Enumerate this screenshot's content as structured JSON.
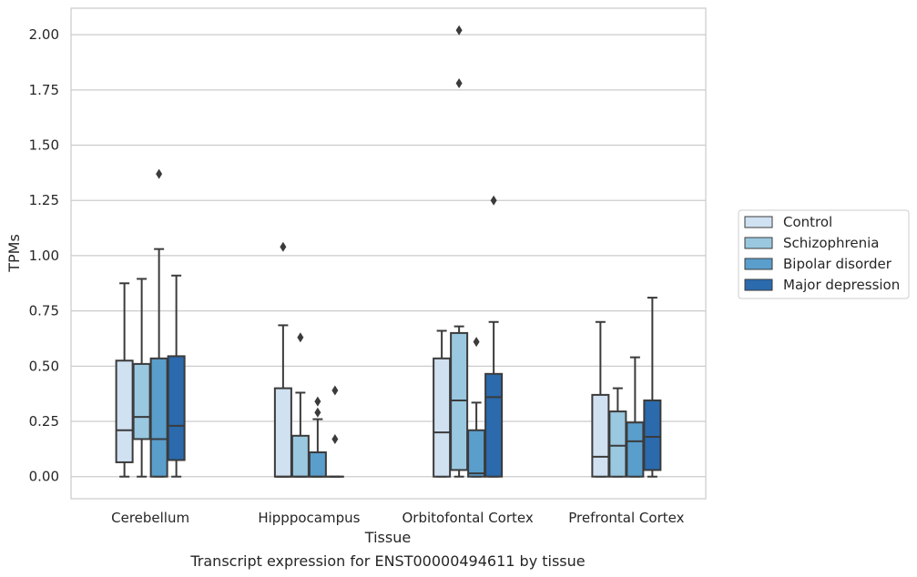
{
  "chart_data": {
    "type": "box",
    "caption": "Transcript expression for ENST00000494611 by tissue",
    "xlabel": "Tissue",
    "ylabel": "TPMs",
    "ylim": [
      -0.1,
      2.12
    ],
    "yticks": [
      "0.00",
      "0.25",
      "0.50",
      "0.75",
      "1.00",
      "1.25",
      "1.50",
      "1.75",
      "2.00"
    ],
    "ytick_values": [
      0,
      0.25,
      0.5,
      0.75,
      1.0,
      1.25,
      1.5,
      1.75,
      2.0
    ],
    "grid": "horizontal",
    "legend_position": "right",
    "categories": [
      "Cerebellum",
      "Hipppocampus",
      "Orbitofontal Cortex",
      "Prefrontal Cortex"
    ],
    "series": [
      {
        "name": "Control",
        "color": "#d0e1f2",
        "boxes": [
          {
            "whisker_low": 0.0,
            "q1": 0.065,
            "median": 0.21,
            "q3": 0.525,
            "whisker_high": 0.875,
            "outliers": []
          },
          {
            "whisker_low": 0.0,
            "q1": 0.0,
            "median": 0.0,
            "q3": 0.4,
            "whisker_high": 0.685,
            "outliers": [
              1.04
            ]
          },
          {
            "whisker_low": 0.0,
            "q1": 0.0,
            "median": 0.2,
            "q3": 0.535,
            "whisker_high": 0.66,
            "outliers": []
          },
          {
            "whisker_low": 0.0,
            "q1": 0.0,
            "median": 0.09,
            "q3": 0.37,
            "whisker_high": 0.7,
            "outliers": []
          }
        ]
      },
      {
        "name": "Schizophrenia",
        "color": "#9ac8e0",
        "boxes": [
          {
            "whisker_low": 0.0,
            "q1": 0.17,
            "median": 0.27,
            "q3": 0.51,
            "whisker_high": 0.895,
            "outliers": []
          },
          {
            "whisker_low": 0.0,
            "q1": 0.0,
            "median": 0.0,
            "q3": 0.185,
            "whisker_high": 0.38,
            "outliers": [
              0.63
            ]
          },
          {
            "whisker_low": 0.0,
            "q1": 0.03,
            "median": 0.345,
            "q3": 0.65,
            "whisker_high": 0.68,
            "outliers": [
              2.02,
              1.78
            ]
          },
          {
            "whisker_low": 0.0,
            "q1": 0.0,
            "median": 0.14,
            "q3": 0.295,
            "whisker_high": 0.4,
            "outliers": []
          }
        ]
      },
      {
        "name": "Bipolar disorder",
        "color": "#5a9ecc",
        "boxes": [
          {
            "whisker_low": 0.0,
            "q1": 0.0,
            "median": 0.17,
            "q3": 0.535,
            "whisker_high": 1.03,
            "outliers": [
              1.37
            ]
          },
          {
            "whisker_low": 0.0,
            "q1": 0.0,
            "median": 0.0,
            "q3": 0.11,
            "whisker_high": 0.26,
            "outliers": [
              0.34,
              0.29
            ]
          },
          {
            "whisker_low": 0.0,
            "q1": 0.0,
            "median": 0.015,
            "q3": 0.21,
            "whisker_high": 0.335,
            "outliers": [
              0.61
            ]
          },
          {
            "whisker_low": 0.0,
            "q1": 0.0,
            "median": 0.16,
            "q3": 0.245,
            "whisker_high": 0.54,
            "outliers": []
          }
        ]
      },
      {
        "name": "Major depression",
        "color": "#2a6aad",
        "boxes": [
          {
            "whisker_low": 0.0,
            "q1": 0.075,
            "median": 0.23,
            "q3": 0.545,
            "whisker_high": 0.91,
            "outliers": []
          },
          {
            "whisker_low": 0.0,
            "q1": 0.0,
            "median": 0.0,
            "q3": 0.0,
            "whisker_high": 0.0,
            "outliers": [
              0.39,
              0.17
            ]
          },
          {
            "whisker_low": 0.0,
            "q1": 0.0,
            "median": 0.36,
            "q3": 0.465,
            "whisker_high": 0.7,
            "outliers": [
              1.25
            ]
          },
          {
            "whisker_low": 0.0,
            "q1": 0.03,
            "median": 0.18,
            "q3": 0.345,
            "whisker_high": 0.81,
            "outliers": []
          }
        ]
      }
    ]
  }
}
